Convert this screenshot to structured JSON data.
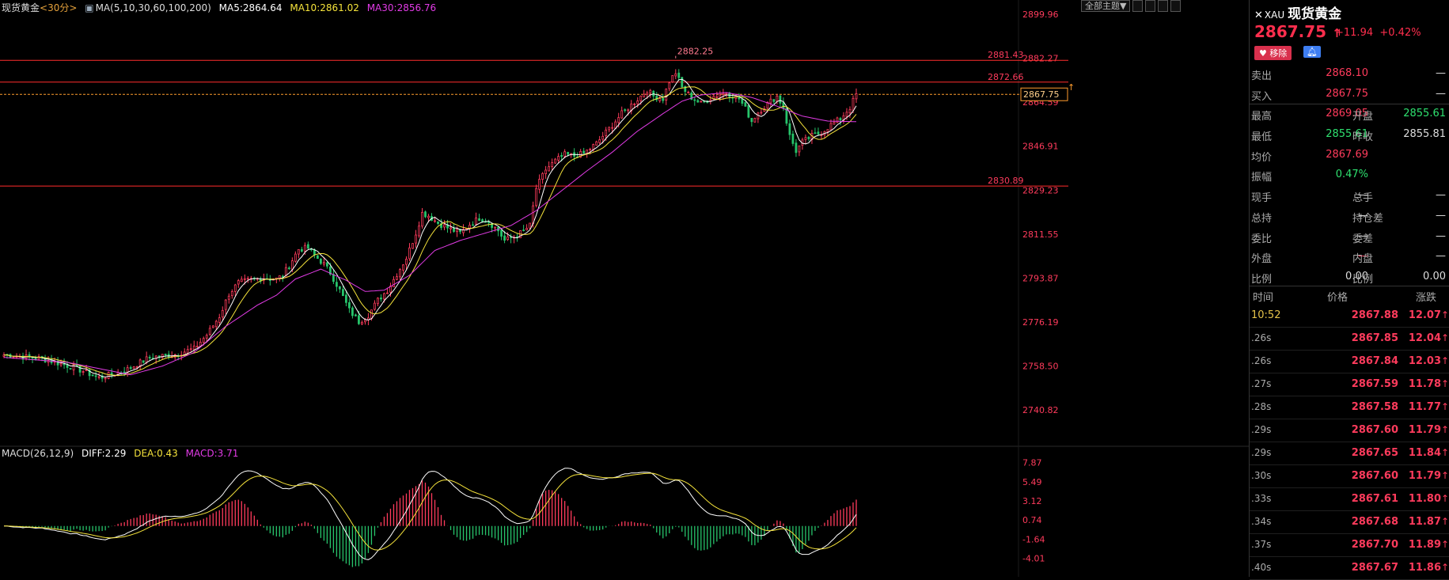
{
  "header": {
    "symbol": "现货黄金",
    "period": "<30分>",
    "ma_params": "MA(5,10,30,60,100,200)",
    "ma5": "MA5:2864.64",
    "ma10": "MA10:2861.02",
    "ma30": "MA30:2856.76",
    "all_themes": "全部主题▼"
  },
  "macd_header": {
    "params": "MACD(26,12,9)",
    "diff": "DIFF:2.29",
    "dea": "DEA:0.43",
    "macd": "MACD:3.71"
  },
  "colors": {
    "up": "#ff3b5c",
    "down": "#27c46b",
    "ma5": "#ffffff",
    "ma10": "#f5e33b",
    "ma30": "#e23be6",
    "level_line": "#ff2d2d",
    "current": "#ff9d2e"
  },
  "chart_data": {
    "type": "candlestick",
    "title": "现货黄金 <30分>",
    "price_axis_ticks": [
      "2899.96",
      "2882.27",
      "2864.59",
      "2846.91",
      "2829.23",
      "2811.55",
      "2793.87",
      "2776.19",
      "2758.50",
      "2740.82"
    ],
    "ylim": [
      2731.98,
      2899.96
    ],
    "horizontal_levels": [
      {
        "label": "2881.43",
        "value": 2881.43
      },
      {
        "label": "2872.66",
        "value": 2872.66
      },
      {
        "label": "2830.89",
        "value": 2830.89
      }
    ],
    "current_price": {
      "label": "2867.75",
      "value": 2867.75
    },
    "high_marker": {
      "label": "2882.25",
      "value": 2882.25
    },
    "close_path": [
      [
        0,
        2763.0
      ],
      [
        12,
        2761.5
      ],
      [
        22,
        2758.0
      ],
      [
        30,
        2753.8
      ],
      [
        38,
        2756.5
      ],
      [
        46,
        2762.0
      ],
      [
        54,
        2763.2
      ],
      [
        60,
        2765.5
      ],
      [
        64,
        2771.0
      ],
      [
        68,
        2778.5
      ],
      [
        71,
        2787.5
      ],
      [
        74,
        2792.0
      ],
      [
        78,
        2793.2
      ],
      [
        82,
        2794.0
      ],
      [
        86,
        2793.5
      ],
      [
        88,
        2795.0
      ],
      [
        90,
        2799.0
      ],
      [
        93,
        2805.5
      ],
      [
        96,
        2806.0
      ],
      [
        98,
        2803.0
      ],
      [
        101,
        2799.5
      ],
      [
        103,
        2796.0
      ],
      [
        106,
        2789.0
      ],
      [
        109,
        2781.0
      ],
      [
        112,
        2776.3
      ],
      [
        115,
        2779.0
      ],
      [
        118,
        2785.0
      ],
      [
        121,
        2789.0
      ],
      [
        124,
        2795.5
      ],
      [
        127,
        2802.0
      ],
      [
        130,
        2812.0
      ],
      [
        132,
        2820.0
      ],
      [
        134,
        2819.0
      ],
      [
        137,
        2816.0
      ],
      [
        141,
        2813.5
      ],
      [
        144,
        2812.0
      ],
      [
        147,
        2815.5
      ],
      [
        150,
        2818.0
      ],
      [
        153,
        2816.5
      ],
      [
        156,
        2813.0
      ],
      [
        158,
        2809.0
      ],
      [
        161,
        2810.5
      ],
      [
        164,
        2812.8
      ],
      [
        166,
        2815.0
      ],
      [
        168,
        2830.0
      ],
      [
        171,
        2837.5
      ],
      [
        174,
        2841.0
      ],
      [
        177,
        2843.5
      ],
      [
        180,
        2843.0
      ],
      [
        183,
        2844.0
      ],
      [
        187,
        2848.0
      ],
      [
        191,
        2854.0
      ],
      [
        195,
        2860.0
      ],
      [
        198,
        2863.5
      ],
      [
        201,
        2867.0
      ],
      [
        203,
        2869.5
      ],
      [
        205,
        2867.0
      ],
      [
        208,
        2866.0
      ],
      [
        210,
        2873.0
      ],
      [
        212,
        2876.5
      ],
      [
        214,
        2870.5
      ],
      [
        217,
        2866.5
      ],
      [
        220,
        2864.0
      ],
      [
        224,
        2867.0
      ],
      [
        228,
        2868.5
      ],
      [
        232,
        2866.0
      ],
      [
        234,
        2862.0
      ],
      [
        236,
        2857.0
      ],
      [
        238,
        2860.5
      ],
      [
        241,
        2864.0
      ],
      [
        244,
        2867.0
      ],
      [
        246,
        2862.5
      ],
      [
        248,
        2851.0
      ],
      [
        250,
        2845.0
      ],
      [
        252,
        2848.5
      ],
      [
        255,
        2851.0
      ],
      [
        258,
        2852.5
      ],
      [
        261,
        2855.5
      ],
      [
        264,
        2858.0
      ],
      [
        267,
        2862.5
      ],
      [
        269,
        2867.75
      ]
    ],
    "ma30_path": [
      [
        0,
        2762.0
      ],
      [
        20,
        2760.0
      ],
      [
        30,
        2757.5
      ],
      [
        40,
        2755.0
      ],
      [
        50,
        2758.5
      ],
      [
        60,
        2764.0
      ],
      [
        70,
        2774.5
      ],
      [
        80,
        2783.0
      ],
      [
        86,
        2787.0
      ],
      [
        92,
        2793.5
      ],
      [
        100,
        2797.5
      ],
      [
        108,
        2793.0
      ],
      [
        114,
        2788.5
      ],
      [
        120,
        2789.0
      ],
      [
        128,
        2795.0
      ],
      [
        136,
        2805.0
      ],
      [
        144,
        2809.0
      ],
      [
        152,
        2812.0
      ],
      [
        160,
        2815.0
      ],
      [
        168,
        2821.0
      ],
      [
        176,
        2829.0
      ],
      [
        184,
        2837.0
      ],
      [
        192,
        2844.5
      ],
      [
        200,
        2853.0
      ],
      [
        208,
        2860.0
      ],
      [
        214,
        2865.0
      ],
      [
        220,
        2867.5
      ],
      [
        228,
        2868.5
      ],
      [
        236,
        2866.5
      ],
      [
        244,
        2863.0
      ],
      [
        252,
        2859.0
      ],
      [
        260,
        2857.0
      ],
      [
        269,
        2856.76
      ]
    ],
    "macd_axis_ticks": [
      "7.87",
      "5.49",
      "3.12",
      "0.74",
      "-1.64",
      "-4.01"
    ],
    "macd_ylim": [
      -6.3,
      8.8
    ]
  },
  "panel": {
    "symbol_code": "XAU",
    "symbol_name": "现货黄金",
    "last": "2867.75",
    "arrow": "↑",
    "change": "+11.94",
    "change_pct": "+0.42%",
    "remove_btn": "移除",
    "quote_rows": [
      {
        "l1": "卖出",
        "v1": "2868.10",
        "c1": "red",
        "l2": "",
        "v2": "—",
        "c2": "white"
      },
      {
        "l1": "买入",
        "v1": "2867.75",
        "c1": "red",
        "l2": "",
        "v2": "—",
        "c2": "white"
      },
      {
        "l1": "最高",
        "v1": "2869.05",
        "c1": "red",
        "l2": "开盘",
        "v2": "2855.61",
        "c2": "green"
      },
      {
        "l1": "最低",
        "v1": "2855.61",
        "c1": "green",
        "l2": "昨收",
        "v2": "2855.81",
        "c2": "white"
      },
      {
        "l1": "均价",
        "v1": "2867.69",
        "c1": "red",
        "l2": "",
        "v2": "",
        "c2": "white"
      },
      {
        "l1": "振幅",
        "v1": "0.47%",
        "c1": "green",
        "l2": "",
        "v2": "",
        "c2": "white"
      },
      {
        "l1": "现手",
        "v1": "—",
        "c1": "white",
        "l2": "总手",
        "v2": "—",
        "c2": "white"
      },
      {
        "l1": "总持",
        "v1": "—",
        "c1": "white",
        "l2": "持仓差",
        "v2": "—",
        "c2": "white"
      },
      {
        "l1": "委比",
        "v1": "—",
        "c1": "white",
        "l2": "委差",
        "v2": "—",
        "c2": "white"
      },
      {
        "l1": "外盘",
        "v1": "—",
        "c1": "red",
        "l2": "内盘",
        "v2": "—",
        "c2": "white"
      },
      {
        "l1": "比例",
        "v1": "0.00",
        "c1": "white",
        "l2": "比例",
        "v2": "0.00",
        "c2": "white"
      }
    ],
    "tick_headers": {
      "time": "时间",
      "price": "价格",
      "change": "涨跌"
    },
    "ticks": [
      {
        "t": "10:52",
        "p": "2867.88",
        "d": "12.07"
      },
      {
        "t": ".26s",
        "p": "2867.85",
        "d": "12.04"
      },
      {
        "t": ".26s",
        "p": "2867.84",
        "d": "12.03"
      },
      {
        "t": ".27s",
        "p": "2867.59",
        "d": "11.78"
      },
      {
        "t": ".28s",
        "p": "2867.58",
        "d": "11.77"
      },
      {
        "t": ".29s",
        "p": "2867.60",
        "d": "11.79"
      },
      {
        "t": ".29s",
        "p": "2867.65",
        "d": "11.84"
      },
      {
        "t": ".30s",
        "p": "2867.60",
        "d": "11.79"
      },
      {
        "t": ".33s",
        "p": "2867.61",
        "d": "11.80"
      },
      {
        "t": ".34s",
        "p": "2867.68",
        "d": "11.87"
      },
      {
        "t": ".37s",
        "p": "2867.70",
        "d": "11.89"
      },
      {
        "t": ".40s",
        "p": "2867.67",
        "d": "11.86"
      }
    ]
  }
}
